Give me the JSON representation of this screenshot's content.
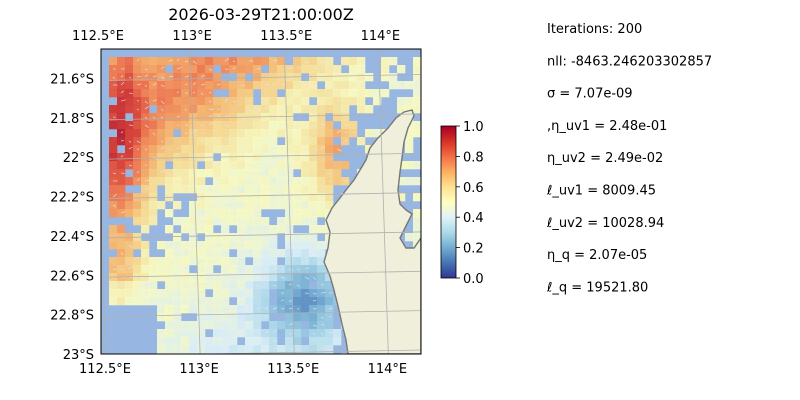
{
  "chart_data": {
    "type": "heatmap",
    "title": "2026-03-29T21:00:00Z",
    "x_ticks": [
      "112.5°E",
      "113°E",
      "113.5°E",
      "114°E"
    ],
    "x_tick_values": [
      112.5,
      113.0,
      113.5,
      114.0
    ],
    "y_ticks": [
      "21.6°S",
      "21.8°S",
      "22°S",
      "22.2°S",
      "22.4°S",
      "22.6°S",
      "22.8°S",
      "23°S"
    ],
    "y_tick_values": [
      -21.6,
      -21.8,
      -22.0,
      -22.2,
      -22.4,
      -22.6,
      -22.8,
      -23.0
    ],
    "xlim": [
      112.5,
      114.2
    ],
    "ylim": [
      -23.0,
      -21.45
    ],
    "grid": true,
    "colorbar": {
      "range": [
        0.0,
        1.0
      ],
      "ticks": [
        "0.0",
        "0.2",
        "0.4",
        "0.6",
        "0.8",
        "1.0"
      ],
      "tick_values": [
        0.0,
        0.2,
        0.4,
        0.6,
        0.8,
        1.0
      ],
      "colormap": "RdYlBu_r"
    },
    "colors": {
      "ocean": "#97b6e1",
      "land": "#efefdb",
      "coast": "#777777"
    }
  },
  "stats": [
    "Iterations: 200",
    "nll: -8463.246203302857",
    "σ = 7.07e-09",
    ",η_uv1 = 2.48e-01",
    "η_uv2 = 2.49e-02",
    "ℓ_uv1 = 8009.45",
    "ℓ_uv2 = 10028.94",
    "η_q = 2.07e-05",
    "ℓ_q = 19521.80"
  ]
}
